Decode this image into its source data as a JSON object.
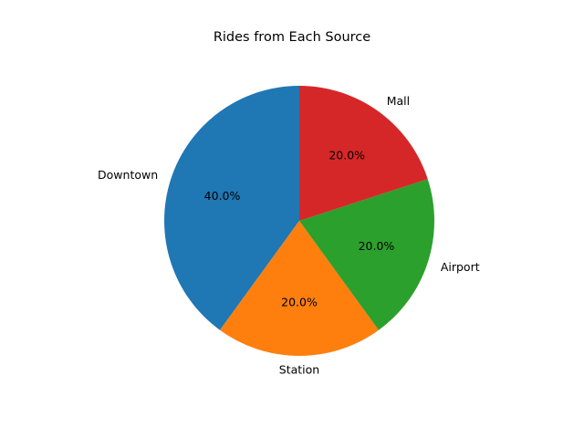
{
  "chart_data": {
    "type": "pie",
    "title": "Rides from Each Source",
    "categories": [
      "Downtown",
      "Station",
      "Airport",
      "Mall"
    ],
    "values": [
      40,
      20,
      20,
      20
    ],
    "percent_labels": [
      "40.0%",
      "20.0%",
      "20.0%",
      "20.0%"
    ],
    "colors": [
      "#1f77b4",
      "#ff7f0e",
      "#2ca02c",
      "#d62728"
    ],
    "start_angle_deg": 90,
    "direction": "counterclockwise",
    "legend": "none"
  }
}
